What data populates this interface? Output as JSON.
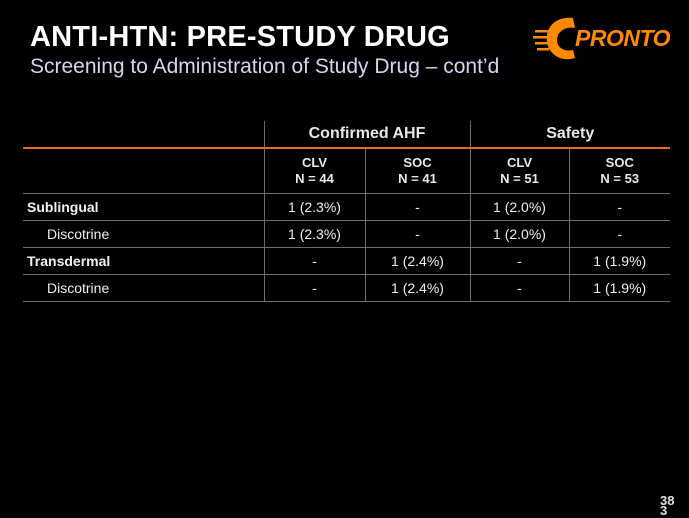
{
  "slide": {
    "title": "ANTI-HTN: PRE-STUDY DRUG",
    "subtitle": "Screening to Administration of Study Drug – cont’d",
    "page_number": "38",
    "page_number_fragment": "3"
  },
  "logo": {
    "text": "PRONTO",
    "icon": "pronto-c-logo",
    "color": "#ff8a00"
  },
  "table": {
    "group_headers": [
      "Confirmed AHF",
      "Safety"
    ],
    "columns": [
      {
        "line1": "CLV",
        "line2": "N = 44"
      },
      {
        "line1": "SOC",
        "line2": "N = 41"
      },
      {
        "line1": "CLV",
        "line2": "N = 51"
      },
      {
        "line1": "SOC",
        "line2": "N = 53"
      }
    ],
    "rows": [
      {
        "label": "Sublingual",
        "values": [
          "1  (2.3%)",
          "-",
          "1  (2.0%)",
          "-"
        ]
      },
      {
        "label": "Discotrine",
        "values": [
          "1  (2.3%)",
          "-",
          "1  (2.0%)",
          "-"
        ]
      },
      {
        "label": "Transdermal",
        "values": [
          "-",
          "1  (2.4%)",
          "-",
          "1  (1.9%)"
        ]
      },
      {
        "label": "Discotrine",
        "values": [
          "-",
          "1  (2.4%)",
          "-",
          "1  (1.9%)"
        ]
      }
    ],
    "header_rule_color": "#e86a1a"
  }
}
